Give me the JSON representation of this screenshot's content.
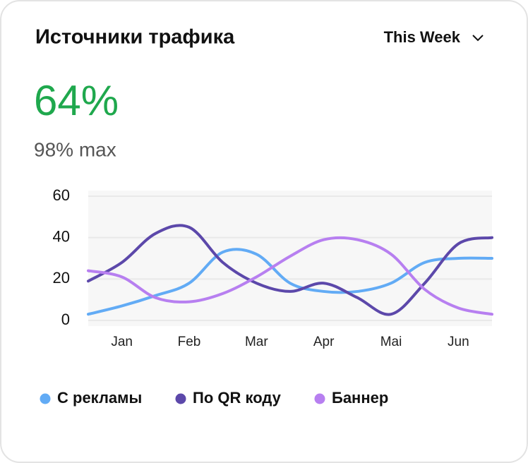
{
  "header": {
    "title": "Источники трафика",
    "period": "This Week",
    "metric": "64%",
    "metric_note": "98% max"
  },
  "chart_data": {
    "type": "line",
    "categories": [
      null,
      "Jan",
      null,
      "Feb",
      null,
      "Mar",
      null,
      "Apr",
      null,
      "Mai",
      null,
      "Jun",
      null
    ],
    "series": [
      {
        "name": "С рекламы",
        "color": "#62abf5",
        "values": [
          3,
          7,
          12,
          18,
          33,
          32,
          18,
          14,
          14,
          18,
          28,
          30,
          30
        ]
      },
      {
        "name": "По QR коду",
        "color": "#5c48aa",
        "values": [
          19,
          28,
          42,
          45,
          28,
          18,
          14,
          18,
          11,
          3,
          18,
          37,
          40
        ]
      },
      {
        "name": "Баннер",
        "color": "#b77ff0",
        "values": [
          24,
          21,
          11,
          9,
          13,
          21,
          31,
          39,
          39,
          32,
          15,
          6,
          3
        ]
      }
    ],
    "ylim": [
      0,
      60
    ],
    "yticks": [
      0,
      20,
      40,
      60
    ],
    "grid": true
  }
}
